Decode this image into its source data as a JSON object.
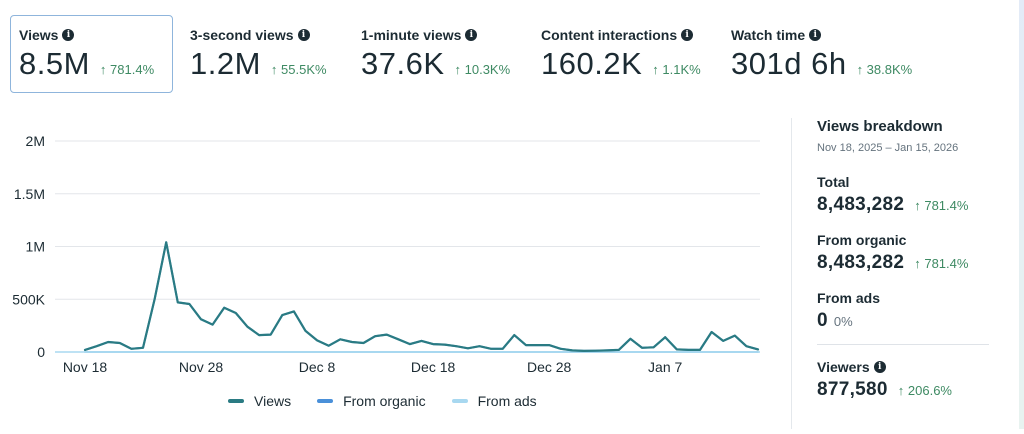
{
  "metrics": [
    {
      "label": "Views",
      "value": "8.5M",
      "change": "↑ 781.4%",
      "active": true
    },
    {
      "label": "3-second views",
      "value": "1.2M",
      "change": "↑ 55.5K%"
    },
    {
      "label": "1-minute views",
      "value": "37.6K",
      "change": "↑ 10.3K%"
    },
    {
      "label": "Content interactions",
      "value": "160.2K",
      "change": "↑ 1.1K%"
    },
    {
      "label": "Watch time",
      "value": "301d 6h",
      "change": "↑ 38.8K%"
    }
  ],
  "info_glyph": "i",
  "colors": {
    "views": "#2a7b83",
    "from_organic": "#4a90d9",
    "from_ads": "#a8d8f0",
    "positive_change": "#3e8a63",
    "active_border": "#8fb5dc"
  },
  "chart_data": {
    "type": "line",
    "title": "",
    "xlabel": "",
    "ylabel": "",
    "ylim": [
      0,
      2000000
    ],
    "y_ticks": [
      0,
      500000,
      1000000,
      1500000,
      2000000
    ],
    "y_tick_labels": [
      "0",
      "500K",
      "1M",
      "1.5M",
      "2M"
    ],
    "x_tick_labels": [
      "Nov 18",
      "Nov 28",
      "Dec 8",
      "Dec 18",
      "Dec 28",
      "Jan 7"
    ],
    "x_tick_index": [
      0,
      10,
      20,
      30,
      40,
      50
    ],
    "grid": true,
    "legend_position": "bottom",
    "x": [
      "Nov 18",
      "Nov 19",
      "Nov 20",
      "Nov 21",
      "Nov 22",
      "Nov 23",
      "Nov 24",
      "Nov 25",
      "Nov 26",
      "Nov 27",
      "Nov 28",
      "Nov 29",
      "Nov 30",
      "Dec 1",
      "Dec 2",
      "Dec 3",
      "Dec 4",
      "Dec 5",
      "Dec 6",
      "Dec 7",
      "Dec 8",
      "Dec 9",
      "Dec 10",
      "Dec 11",
      "Dec 12",
      "Dec 13",
      "Dec 14",
      "Dec 15",
      "Dec 16",
      "Dec 17",
      "Dec 18",
      "Dec 19",
      "Dec 20",
      "Dec 21",
      "Dec 22",
      "Dec 23",
      "Dec 24",
      "Dec 25",
      "Dec 26",
      "Dec 27",
      "Dec 28",
      "Dec 29",
      "Dec 30",
      "Dec 31",
      "Jan 1",
      "Jan 2",
      "Jan 3",
      "Jan 4",
      "Jan 5",
      "Jan 6",
      "Jan 7",
      "Jan 8",
      "Jan 9",
      "Jan 10",
      "Jan 11",
      "Jan 12",
      "Jan 13",
      "Jan 14",
      "Jan 15"
    ],
    "series": [
      {
        "name": "Views",
        "values": [
          20000,
          55000,
          95000,
          85000,
          30000,
          40000,
          500000,
          1040000,
          470000,
          455000,
          310000,
          260000,
          420000,
          370000,
          240000,
          160000,
          165000,
          350000,
          385000,
          200000,
          110000,
          60000,
          120000,
          95000,
          85000,
          150000,
          165000,
          120000,
          75000,
          105000,
          75000,
          70000,
          55000,
          35000,
          55000,
          30000,
          30000,
          160000,
          65000,
          65000,
          65000,
          30000,
          15000,
          10000,
          12000,
          15000,
          20000,
          125000,
          40000,
          45000,
          140000,
          25000,
          20000,
          20000,
          190000,
          105000,
          155000,
          55000,
          25000
        ]
      },
      {
        "name": "From organic",
        "values": [
          20000,
          55000,
          95000,
          85000,
          30000,
          40000,
          500000,
          1040000,
          470000,
          455000,
          310000,
          260000,
          420000,
          370000,
          240000,
          160000,
          165000,
          350000,
          385000,
          200000,
          110000,
          60000,
          120000,
          95000,
          85000,
          150000,
          165000,
          120000,
          75000,
          105000,
          75000,
          70000,
          55000,
          35000,
          55000,
          30000,
          30000,
          160000,
          65000,
          65000,
          65000,
          30000,
          15000,
          10000,
          12000,
          15000,
          20000,
          125000,
          40000,
          45000,
          140000,
          25000,
          20000,
          20000,
          190000,
          105000,
          155000,
          55000,
          25000
        ]
      },
      {
        "name": "From ads",
        "values": [
          0,
          0,
          0,
          0,
          0,
          0,
          0,
          0,
          0,
          0,
          0,
          0,
          0,
          0,
          0,
          0,
          0,
          0,
          0,
          0,
          0,
          0,
          0,
          0,
          0,
          0,
          0,
          0,
          0,
          0,
          0,
          0,
          0,
          0,
          0,
          0,
          0,
          0,
          0,
          0,
          0,
          0,
          0,
          0,
          0,
          0,
          0,
          0,
          0,
          0,
          0,
          0,
          0,
          0,
          0,
          0,
          0,
          0,
          0
        ]
      }
    ]
  },
  "legend": [
    {
      "label": "Views",
      "color": "#2a7b83"
    },
    {
      "label": "From organic",
      "color": "#4a90d9"
    },
    {
      "label": "From ads",
      "color": "#a8d8f0"
    }
  ],
  "breakdown": {
    "title": "Views breakdown",
    "date_range": "Nov 18, 2025 – Jan 15, 2026",
    "total_label": "Total",
    "total_value": "8,483,282",
    "total_change": "↑ 781.4%",
    "organic_label": "From organic",
    "organic_value": "8,483,282",
    "organic_change": "↑ 781.4%",
    "ads_label": "From ads",
    "ads_value": "0",
    "ads_change": "0%",
    "viewers_label": "Viewers",
    "viewers_value": "877,580",
    "viewers_change": "↑ 206.6%"
  }
}
